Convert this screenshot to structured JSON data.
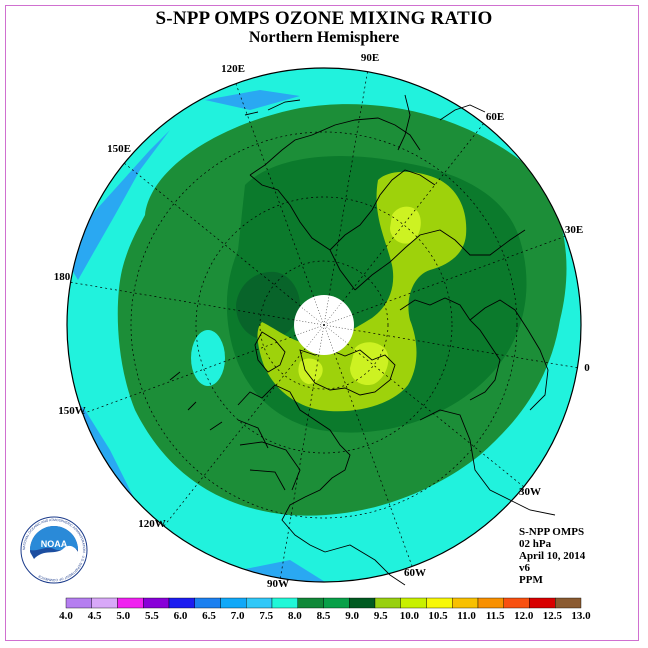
{
  "title": "S-NPP OMPS OZONE MIXING RATIO",
  "subtitle": "Northern Hemisphere",
  "longitude_labels": [
    "90E",
    "60E",
    "30E",
    "0",
    "30W",
    "60W",
    "90W",
    "120W",
    "150W",
    "180",
    "150E",
    "120E"
  ],
  "info": {
    "instrument": "S-NPP OMPS",
    "level": "02 hPa",
    "date": "April 10, 2014",
    "version": "v6",
    "units": "PPM"
  },
  "colorbar": {
    "ticks": [
      "4.0",
      "4.5",
      "5.0",
      "5.5",
      "6.0",
      "6.5",
      "7.0",
      "7.5",
      "8.0",
      "8.5",
      "9.0",
      "9.5",
      "10.0",
      "10.5",
      "11.0",
      "11.5",
      "12.0",
      "12.5",
      "13.0"
    ],
    "colors": [
      "#b57ef0",
      "#d8a8f8",
      "#f020f0",
      "#8800d8",
      "#1c1cf0",
      "#1b80f0",
      "#10a8f8",
      "#30c8f8",
      "#20f8d8",
      "#108838",
      "#08a048",
      "#005a20",
      "#98d010",
      "#c8f000",
      "#f8f808",
      "#f8c000",
      "#f89000",
      "#f85010",
      "#d80000",
      "#8a5a30"
    ]
  },
  "palette": {
    "cyan": "#21f2dd",
    "blue": "#2aa8f2",
    "green_dark": "#0b7a2c",
    "green_mid": "#1c8e38",
    "green_deep": "#08642a",
    "lime": "#9ed20b",
    "yellow_green": "#cdf222",
    "yellow": "#f2f60f",
    "pole_fill": "#ffffff"
  },
  "logo": {
    "text": "NOAA",
    "ring_text": "NATIONAL OCEANIC AND ATMOSPHERIC ADMINISTRATION · U.S. DEPARTMENT OF COMMERCE"
  }
}
